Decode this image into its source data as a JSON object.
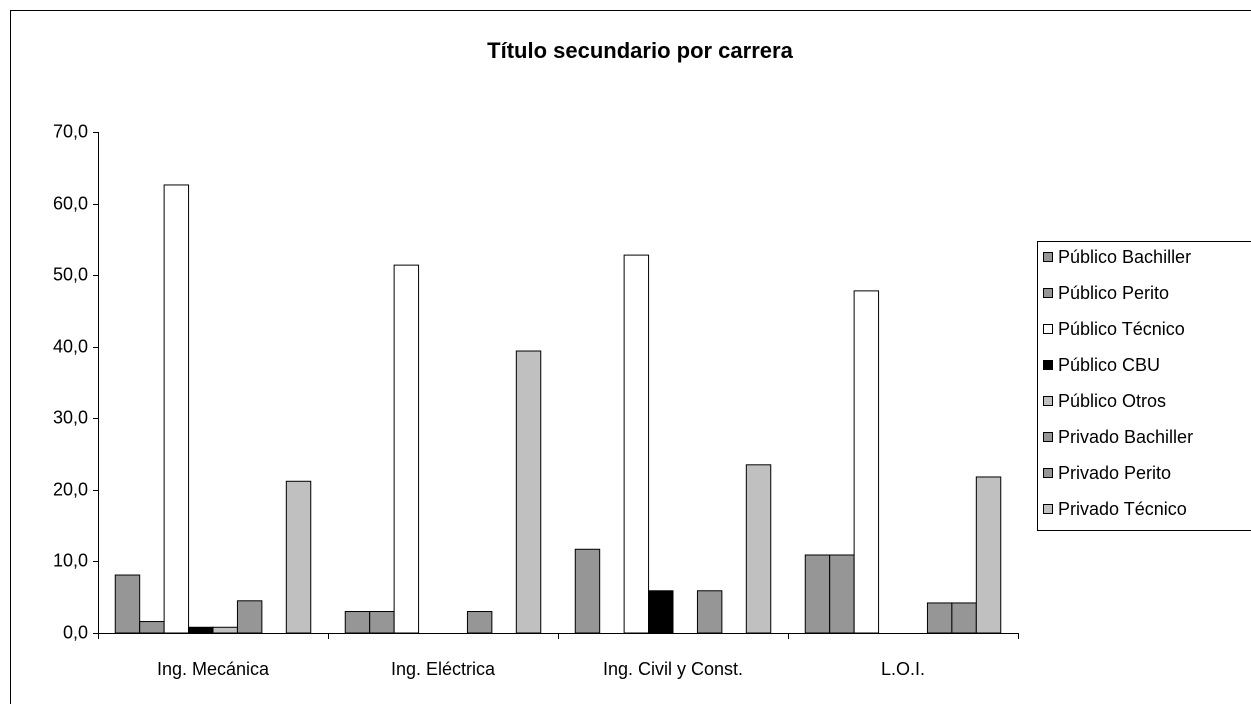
{
  "chart_data": {
    "type": "bar",
    "title": "Título secundario por carrera",
    "categories": [
      "Ing. Mecánica",
      "Ing. Eléctrica",
      "Ing. Civil y Const.",
      "L.O.I."
    ],
    "series": [
      {
        "name": "Público Bachiller",
        "color": "#969696",
        "values": [
          8.1,
          3.0,
          11.7,
          10.9
        ]
      },
      {
        "name": "Público Perito",
        "color": "#969696",
        "values": [
          1.6,
          3.0,
          0,
          10.9
        ]
      },
      {
        "name": "Público Técnico",
        "color": "#ffffff",
        "values": [
          62.6,
          51.4,
          52.8,
          47.8
        ]
      },
      {
        "name": "Público CBU",
        "color": "#000000",
        "values": [
          0.8,
          0,
          5.9,
          0
        ]
      },
      {
        "name": "Público Otros",
        "color": "#c0c0c0",
        "values": [
          0.8,
          0,
          0,
          0
        ]
      },
      {
        "name": "Privado Bachiller",
        "color": "#969696",
        "values": [
          4.5,
          3.0,
          5.9,
          4.2
        ]
      },
      {
        "name": "Privado Perito",
        "color": "#969696",
        "values": [
          0,
          0,
          0,
          4.2
        ]
      },
      {
        "name": "Privado Técnico",
        "color": "#c0c0c0",
        "values": [
          21.2,
          39.4,
          23.5,
          21.8
        ]
      }
    ],
    "ylim": [
      0,
      70
    ],
    "yticks": [
      {
        "value": 0,
        "label": "0,0"
      },
      {
        "value": 10,
        "label": "10,0"
      },
      {
        "value": 20,
        "label": "20,0"
      },
      {
        "value": 30,
        "label": "30,0"
      },
      {
        "value": 40,
        "label": "40,0"
      },
      {
        "value": 50,
        "label": "50,0"
      },
      {
        "value": 60,
        "label": "60,0"
      },
      {
        "value": 70,
        "label": "70,0"
      }
    ],
    "grid": false,
    "legend": "right"
  }
}
